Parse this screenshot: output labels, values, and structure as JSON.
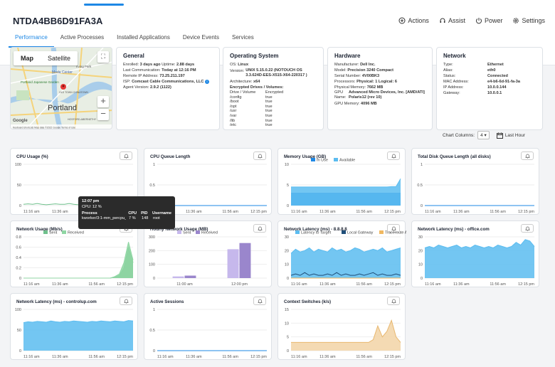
{
  "device": {
    "title": "NTDA4BB6D91FA3A"
  },
  "header_actions": [
    {
      "label": "Actions",
      "icon": "actions-icon"
    },
    {
      "label": "Assist",
      "icon": "headset-icon"
    },
    {
      "label": "Power",
      "icon": "power-icon"
    },
    {
      "label": "Settings",
      "icon": "gear-icon"
    }
  ],
  "tabs": [
    "Performance",
    "Active Processes",
    "Installed Applications",
    "Device Events",
    "Services"
  ],
  "active_tab": "Performance",
  "map": {
    "map_btn": "Map",
    "satellite_btn": "Satellite",
    "city": "Portland",
    "labels": [
      "Moda Center",
      "Portland Japanese Garden",
      "OLD TOWN CHINATOWN",
      "irving Park",
      "HOSFORD-ABERNETHY"
    ],
    "footer": "Keyboard shortcuts   Map data ©2022 Google   Terms of Use",
    "google": "Google"
  },
  "general": {
    "title": "General",
    "lines": [
      {
        "k": "Enrolled:",
        "v": "3 days ago",
        "k2": "Uptime:",
        "v2": "2.88 days"
      },
      {
        "k": "Last Communication:",
        "v": "Today at 12:16 PM"
      },
      {
        "k": "Remote IP Address:",
        "v": "73.25.211.197"
      },
      {
        "k": "ISP:",
        "v": "Comcast Cable Communications, LLC"
      },
      {
        "k": "Agent Version:",
        "v": "2.9.2 (1122)"
      }
    ]
  },
  "os": {
    "title": "Operating System",
    "os_label": "OS:",
    "os_value": "Linux",
    "version_label": "Version:",
    "version_value": "UNIX 5.15.0.22 (NOTOUCH OS 3.3.624D-EES-X515-X64-220317 )",
    "arch_label": "Architecture:",
    "arch_value": "x64",
    "enc_title": "Encrypted Drives / Volumes:",
    "enc_headers": [
      "Drive / Volume",
      "Encrypted"
    ],
    "enc_rows": [
      [
        "/config",
        "true"
      ],
      [
        "/boot",
        "true"
      ],
      [
        "/opt",
        "true"
      ],
      [
        "/usr",
        "true"
      ],
      [
        "/var",
        "true"
      ],
      [
        "/lib",
        "true"
      ],
      [
        "/etc",
        "true"
      ]
    ]
  },
  "hardware": {
    "title": "Hardware",
    "lines": [
      {
        "k": "Manufacturer:",
        "v": "Dell Inc."
      },
      {
        "k": "Model:",
        "v": "Precision 3240 Compact"
      },
      {
        "k": "Serial Number:",
        "v": "4V00BK3"
      },
      {
        "k": "Processors:",
        "v": "Physical: 1 Logical: 6"
      },
      {
        "k": "Physical Memory:",
        "v": "7662 MB"
      },
      {
        "k": "GPU Name:",
        "v": "Advanced Micro Devices, Inc. [AMD/ATI] Polaris12 (rev 10)"
      },
      {
        "k": "GPU Memory:",
        "v": "4096 MB"
      }
    ]
  },
  "network_info": {
    "title": "Network",
    "rows": [
      [
        "Type:",
        "Ethernet"
      ],
      [
        "Alias:",
        "eth0"
      ],
      [
        "Status:",
        "Connected"
      ],
      [
        "MAC Address:",
        "e4-b6-6d-91-fa-3a"
      ],
      [
        "IP Address:",
        "10.0.0.144"
      ],
      [
        "Gateway:",
        "10.0.0.1"
      ]
    ]
  },
  "chart_controls": {
    "columns_label": "Chart Columns:",
    "columns_value": "4",
    "range_label": "Last Hour"
  },
  "tooltip": {
    "time": "12:07 pm",
    "cpu": "CPU: 12 %",
    "headers": [
      "Process",
      "CPU",
      "PID",
      "Username"
    ],
    "row": [
      "kworker/3:1-mm_percpu_wq",
      "7 %",
      "148",
      "root"
    ]
  },
  "xticks": [
    "11:16 am",
    "11:36 am",
    "11:56 am",
    "12:15 pm"
  ],
  "colors": {
    "blue": "#1e88e5",
    "lightblue": "#5bbcf0",
    "green": "#6fc08c",
    "purple": "#9a86cc",
    "orange": "#f0b860"
  },
  "chart_data": [
    {
      "type": "line",
      "title": "CPU Usage (%)",
      "ylim": [
        0,
        100
      ],
      "yticks": [
        0,
        50,
        100
      ],
      "series": [
        {
          "values": [
            3,
            4,
            3,
            5,
            3,
            2,
            3,
            4,
            3,
            3,
            5,
            3,
            2,
            3,
            4,
            3,
            6,
            4,
            3,
            3,
            4,
            3,
            2,
            3,
            3
          ]
        }
      ]
    },
    {
      "type": "line",
      "title": "CPU Queue Length",
      "ylim": [
        0,
        1
      ],
      "yticks": [
        0,
        0.5,
        1.0
      ],
      "series": [
        {
          "values": [
            0,
            0,
            0,
            0,
            0,
            0,
            0,
            0,
            0,
            0,
            0,
            0,
            0,
            0,
            0,
            0,
            0,
            0,
            0,
            0,
            0,
            0,
            0,
            0,
            0
          ]
        }
      ]
    },
    {
      "type": "area",
      "title": "Memory Usage (GB)",
      "ylim": [
        0,
        10
      ],
      "yticks": [
        0,
        5,
        10
      ],
      "series": [
        {
          "name": "In Use",
          "values": [
            3,
            3,
            3,
            3,
            3,
            3,
            3,
            3,
            3,
            3,
            3,
            3,
            3,
            3,
            3,
            3,
            3,
            3,
            3,
            3,
            3,
            3,
            3,
            3,
            3
          ]
        },
        {
          "name": "Available",
          "values": [
            4.5,
            4.5,
            4.5,
            4.5,
            4.5,
            4.5,
            4.5,
            4.5,
            4.5,
            4.5,
            4.5,
            4.5,
            4.5,
            4.5,
            4.5,
            4.5,
            4.5,
            4.5,
            4.5,
            4.5,
            4.5,
            4.5,
            4.6,
            4.6,
            6.5
          ]
        }
      ]
    },
    {
      "type": "line",
      "title": "Total Disk Queue Length (all disks)",
      "ylim": [
        0,
        1
      ],
      "yticks": [
        0,
        0.5,
        1.0
      ],
      "series": [
        {
          "values": [
            0,
            0,
            0,
            0,
            0,
            0,
            0,
            0,
            0,
            0,
            0,
            0,
            0,
            0,
            0,
            0,
            0,
            0,
            0,
            0,
            0,
            0,
            0,
            0,
            0
          ]
        }
      ]
    },
    {
      "type": "area",
      "title": "Network Usage (Mb/s)",
      "ylim": [
        0,
        0.8
      ],
      "yticks": [
        0,
        0.2,
        0.4,
        0.6,
        0.8
      ],
      "series": [
        {
          "name": "Sent",
          "values": [
            0,
            0,
            0,
            0,
            0,
            0,
            0,
            0,
            0,
            0,
            0,
            0,
            0,
            0,
            0,
            0,
            0,
            0,
            0,
            0,
            0.02,
            0.05,
            0.2,
            0.6,
            0.3
          ]
        },
        {
          "name": "Received",
          "values": [
            0,
            0,
            0,
            0,
            0,
            0,
            0,
            0,
            0,
            0,
            0,
            0,
            0,
            0,
            0,
            0,
            0,
            0,
            0,
            0,
            0.03,
            0.08,
            0.3,
            0.7,
            0.35
          ]
        }
      ]
    },
    {
      "type": "bar",
      "title": "Hourly Network Usage (MB)",
      "ylim": [
        0,
        300
      ],
      "yticks": [
        0,
        100,
        200,
        300
      ],
      "categories": [
        "11:00 am",
        "12:00 pm"
      ],
      "series": [
        {
          "name": "Sent",
          "values": [
            12,
            210
          ]
        },
        {
          "name": "Received",
          "values": [
            18,
            255
          ]
        }
      ]
    },
    {
      "type": "area",
      "title": "Network Latency (ms) - 8.8.8.8",
      "ylim": [
        0,
        30
      ],
      "yticks": [
        0,
        10,
        20,
        30
      ],
      "series": [
        {
          "name": "Latency to Target",
          "values": [
            18,
            21,
            19,
            20,
            22,
            19,
            21,
            20,
            19,
            22,
            20,
            21,
            19,
            20,
            22,
            21,
            19,
            20,
            21,
            20,
            22,
            19,
            20,
            21,
            22
          ]
        },
        {
          "name": "Local Gateway",
          "values": [
            2,
            3,
            2,
            4,
            2,
            3,
            2,
            2,
            3,
            2,
            4,
            2,
            3,
            2,
            2,
            3,
            2,
            3,
            4,
            2,
            3,
            2,
            2,
            3,
            2
          ]
        },
        {
          "name": "Traceroute Available",
          "values": [
            0,
            0,
            0,
            0,
            0,
            0,
            0,
            0,
            0,
            0,
            0,
            0,
            0,
            0,
            0,
            0,
            0,
            0,
            0,
            0,
            0,
            0,
            0,
            0,
            0
          ]
        }
      ]
    },
    {
      "type": "area",
      "title": "Network Latency (ms) - office.com",
      "ylim": [
        0,
        30
      ],
      "yticks": [
        0,
        10,
        20,
        30
      ],
      "series": [
        {
          "values": [
            22,
            23,
            22,
            24,
            23,
            22,
            23,
            24,
            22,
            23,
            22,
            24,
            23,
            22,
            23,
            22,
            24,
            23,
            22,
            23,
            26,
            24,
            28,
            27,
            23
          ]
        }
      ]
    },
    {
      "type": "area",
      "title": "Network Latency (ms) - controlup.com",
      "ylim": [
        0,
        100
      ],
      "yticks": [
        0,
        50,
        100
      ],
      "series": [
        {
          "values": [
            68,
            70,
            69,
            71,
            70,
            69,
            72,
            70,
            69,
            71,
            70,
            72,
            71,
            70,
            69,
            71,
            70,
            72,
            71,
            70,
            72,
            71,
            70,
            73,
            72
          ]
        }
      ]
    },
    {
      "type": "line",
      "title": "Active Sessions",
      "ylim": [
        0,
        1
      ],
      "yticks": [
        0,
        0.5,
        1.0
      ],
      "series": [
        {
          "values": [
            0,
            0,
            0,
            0,
            0,
            0,
            0,
            0,
            0,
            0,
            0,
            0,
            0,
            0,
            0,
            0,
            0,
            0,
            0,
            0,
            0,
            0,
            0,
            0,
            0
          ]
        }
      ]
    },
    {
      "type": "area",
      "title": "Context Switches (k/s)",
      "ylim": [
        0,
        15
      ],
      "yticks": [
        0,
        5,
        10,
        15
      ],
      "series": [
        {
          "values": [
            3,
            3,
            3,
            3,
            3,
            3,
            3,
            3,
            3,
            3,
            3,
            3,
            3,
            3,
            3,
            3,
            3,
            3,
            4,
            9,
            5,
            7,
            11,
            5,
            3
          ]
        }
      ]
    }
  ]
}
